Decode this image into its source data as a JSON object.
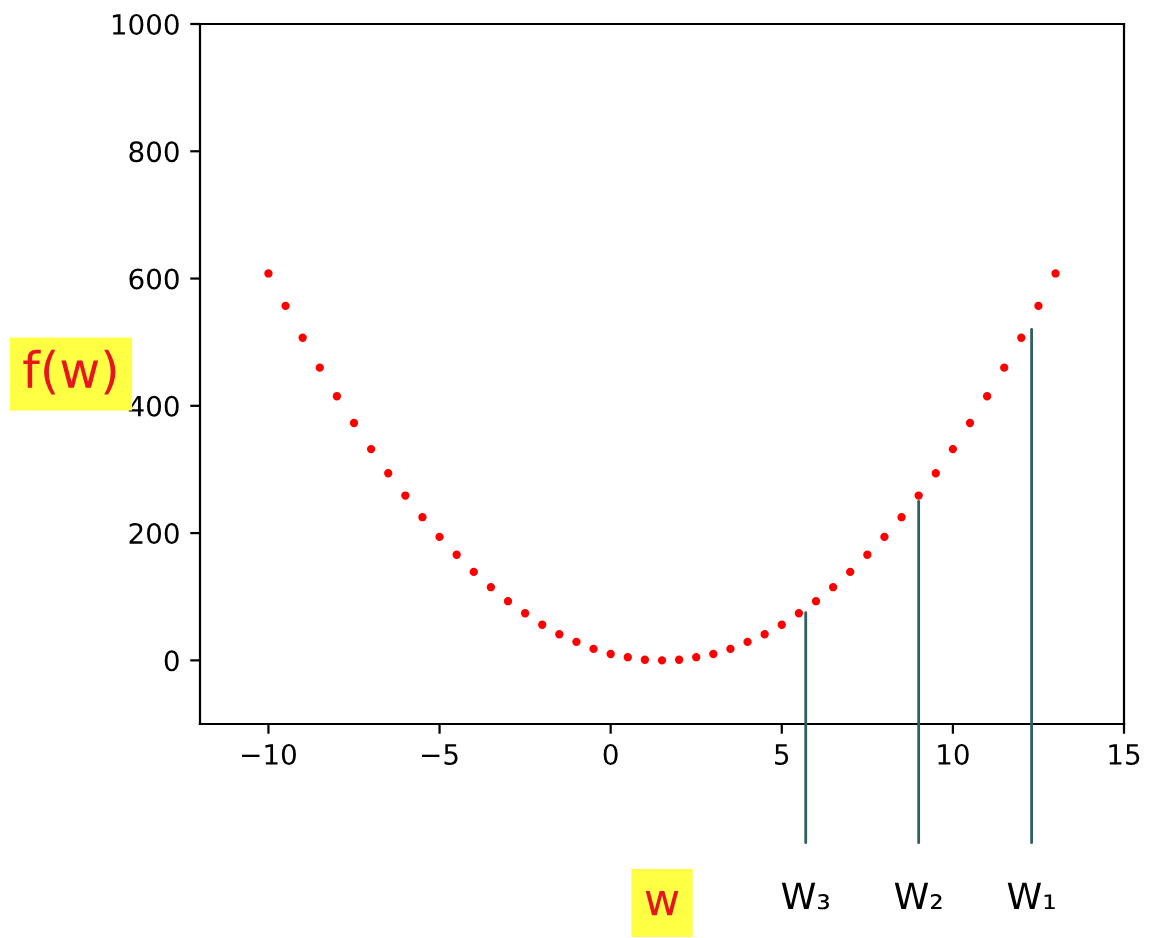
{
  "chart_data": {
    "type": "scatter",
    "xlabel": "w",
    "ylabel": "f(w)",
    "x": [
      -10,
      -9.5,
      -9,
      -8.5,
      -8,
      -7.5,
      -7,
      -6.5,
      -6,
      -5.5,
      -5,
      -4.5,
      -4,
      -3.5,
      -3,
      -2.5,
      -2,
      -1.5,
      -1,
      -0.5,
      0,
      0.5,
      1,
      1.5,
      2,
      2.5,
      3,
      3.5,
      4,
      4.5,
      5,
      5.5,
      6,
      6.5,
      7,
      7.5,
      8,
      8.5,
      9,
      9.5,
      10,
      10.5,
      11,
      11.5,
      12,
      12.5,
      13
    ],
    "series": [
      {
        "color": "#ff0000",
        "values": [
          608,
          557,
          507,
          460,
          415,
          373,
          332,
          294,
          259,
          225,
          194,
          166,
          139,
          115,
          93,
          74,
          56,
          41,
          29,
          18,
          10,
          5,
          1,
          0,
          1,
          5,
          10,
          18,
          29,
          41,
          56,
          74,
          93,
          115,
          139,
          166,
          194,
          225,
          259,
          294,
          332,
          373,
          415,
          460,
          507,
          557,
          608
        ]
      }
    ],
    "marker": "circle",
    "grid": false,
    "legend": false,
    "xlim": [
      -12,
      15
    ],
    "xticks": [
      {
        "value": -10,
        "label": "−10"
      },
      {
        "value": -5,
        "label": "−5"
      },
      0,
      5,
      10,
      15
    ],
    "ylim": [
      -100,
      1000
    ],
    "yticks": [
      0,
      200,
      400,
      600,
      800,
      1000
    ],
    "annotations": [
      {
        "text": "W₁",
        "x": 12.3,
        "y": 520
      },
      {
        "text": "W₂",
        "x": 9,
        "y": 250
      },
      {
        "text": "W₃",
        "x": 5.7,
        "y": 75
      }
    ]
  }
}
